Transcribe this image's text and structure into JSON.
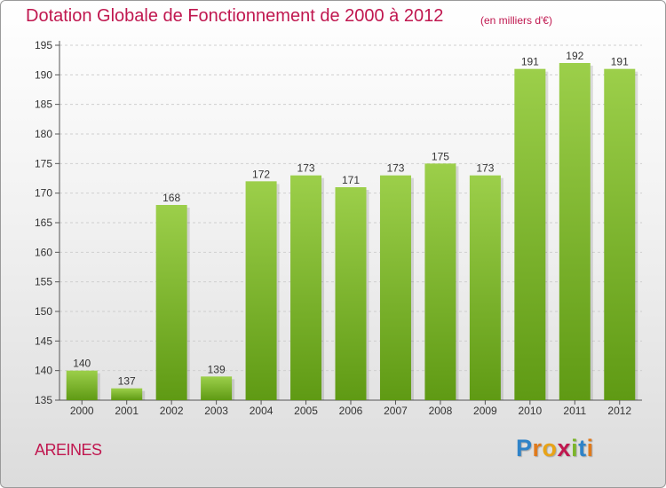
{
  "title": "Dotation Globale de Fonctionnement de 2000 à 2012",
  "unit": "(en milliers d'€)",
  "commune": "AREINES",
  "logo": "Proxiti",
  "colors": {
    "title": "#c0174f",
    "bar_top": "#9ccf4a",
    "bar_bottom": "#5f9a14",
    "grid": "#cfcfcf",
    "axis_text": "#333333"
  },
  "chart_data": {
    "type": "bar",
    "title": "Dotation Globale de Fonctionnement de 2000 à 2012",
    "subtitle": "(en milliers d'€)",
    "xlabel": "",
    "ylabel": "",
    "categories": [
      "2000",
      "2001",
      "2002",
      "2003",
      "2004",
      "2005",
      "2006",
      "2007",
      "2008",
      "2009",
      "2010",
      "2011",
      "2012"
    ],
    "values": [
      140,
      137,
      168,
      139,
      172,
      173,
      171,
      173,
      175,
      173,
      191,
      192,
      191
    ],
    "ylim": [
      135,
      195
    ],
    "yticks": [
      135,
      140,
      145,
      150,
      155,
      160,
      165,
      170,
      175,
      180,
      185,
      190,
      195
    ],
    "grid": true,
    "data_labels": true
  }
}
